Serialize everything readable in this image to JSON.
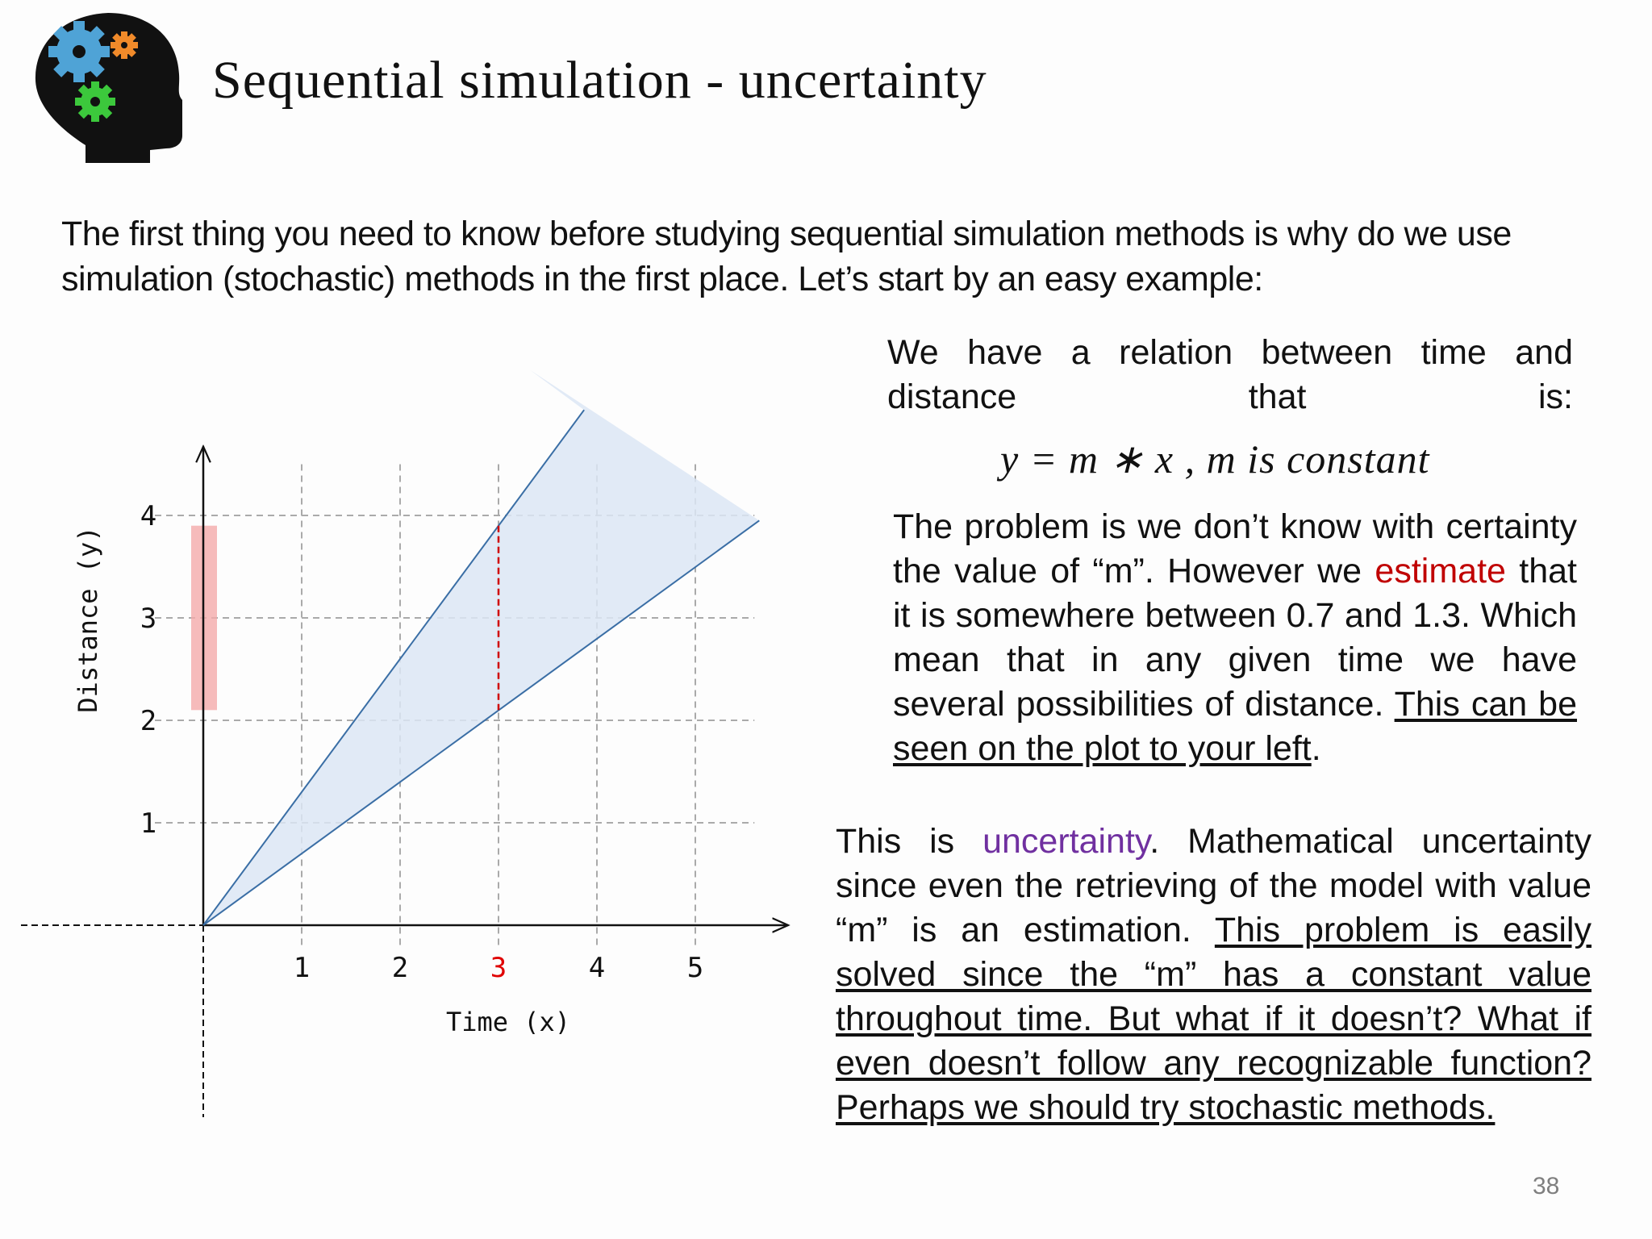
{
  "slide": {
    "title": "Sequential simulation - uncertainty",
    "intro": "The first thing you need to know before studying sequential simulation methods is why do we use simulation (stochastic) methods in the first place. Let’s start by an easy example:",
    "page_number": "38",
    "logo_icon": "head-with-gears-icon"
  },
  "right": {
    "p1": "We have a relation between time and distance that is:",
    "equation": "y = m ∗ x , m is constant",
    "p2_a": "The problem is we don’t know with certainty the value of “m”. However we ",
    "p2_highlight": "estimate",
    "p2_b": " that it is somewhere between 0.7 and 1.3. Which mean that in any given time we have several possibilities of distance. ",
    "p2_link": "This can be seen on the plot to your left",
    "p2_end": ".",
    "p3_a": "This is ",
    "p3_highlight": "uncertainty",
    "p3_b": ". Mathematical uncertainty since even the retrieving of the model with value “m” is an estimation. ",
    "p3_underlined": "This problem is easily solved since the “m” has a constant value throughout time. But what if it doesn’t? What if even doesn’t follow any recognizable function? Perhaps we should try stochastic methods."
  },
  "chart_data": {
    "type": "line",
    "xlabel": "Time (x)",
    "ylabel": "Distance (y)",
    "x_ticks": [
      "1",
      "2",
      "3",
      "4",
      "5"
    ],
    "y_ticks": [
      "1",
      "2",
      "3",
      "4"
    ],
    "highlighted_x": 3,
    "xlim": [
      0,
      5.6
    ],
    "ylim": [
      0,
      4.5
    ],
    "grid": true,
    "series": [
      {
        "points": [
          [
            0,
            0
          ],
          [
            3.87,
            5.03
          ]
        ]
      },
      {
        "points": [
          [
            0,
            0
          ],
          [
            5.65,
            3.95
          ]
        ]
      }
    ],
    "band": {
      "slope_min": 0.7,
      "slope_max": 1.3
    },
    "at_x_3_range": [
      2.1,
      3.9
    ],
    "colors": {
      "band": "#dce6f4",
      "line": "#3a6ea5",
      "highlight_line": "#d00000",
      "range_bar": "#f4aaaa",
      "highlight_tick": "#e00000"
    }
  }
}
